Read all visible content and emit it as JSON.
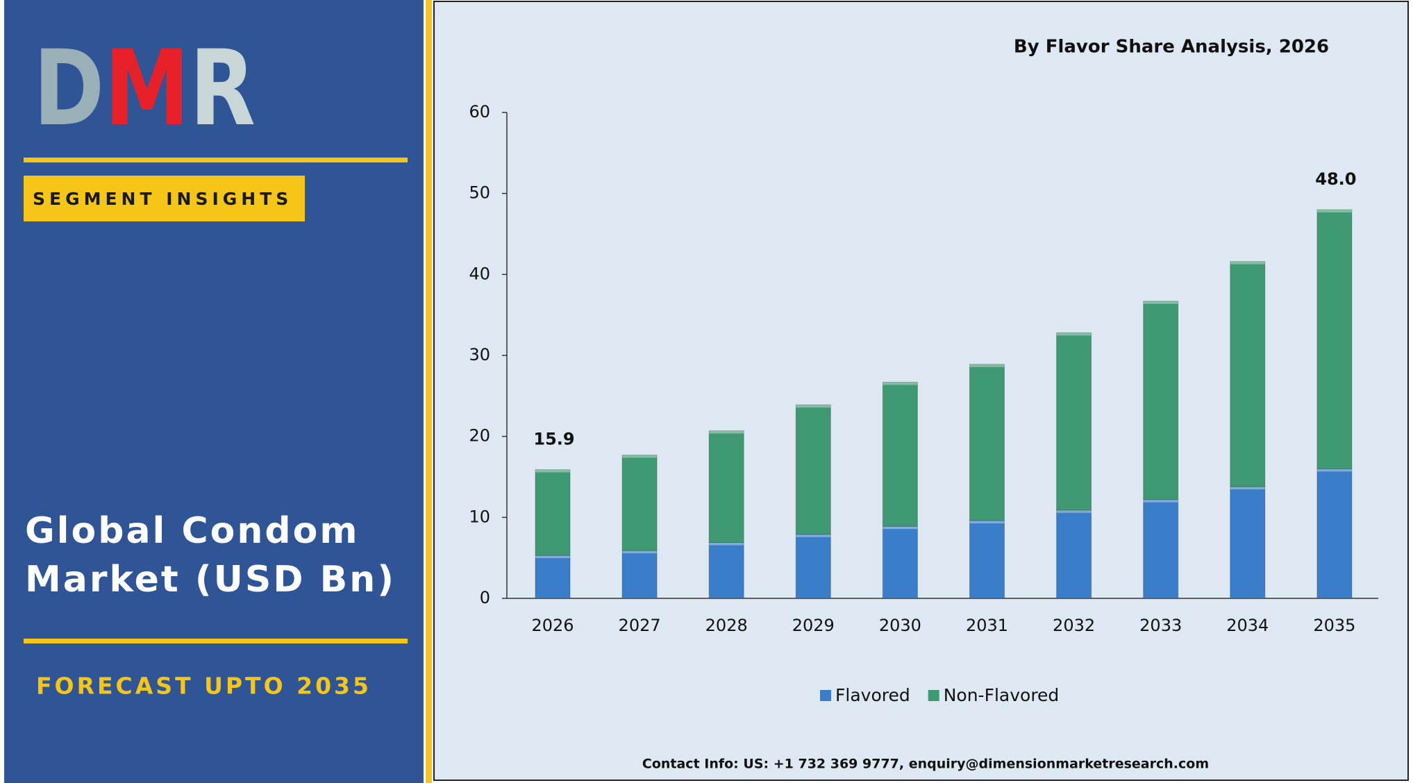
{
  "panel": {
    "logo": "DMR",
    "tag": "SEGMENT INSIGHTS",
    "title_lines": [
      "Global Condom",
      "Market (USD Bn)"
    ],
    "forecast": "FORECAST UPTO 2035"
  },
  "chart_data": {
    "type": "stacked_bar",
    "title": "By Flavor Share Analysis, 2026",
    "categories": [
      "2026",
      "2027",
      "2028",
      "2029",
      "2030",
      "2031",
      "2032",
      "2033",
      "2034",
      "2035"
    ],
    "series": [
      {
        "name": "Flavored",
        "color": "#3a7dc9",
        "values": [
          5.3,
          5.9,
          6.9,
          7.9,
          8.9,
          9.6,
          10.9,
          12.2,
          13.8,
          16.0
        ]
      },
      {
        "name": "Non-Flavored",
        "color": "#3f9a74",
        "values": [
          10.6,
          11.8,
          13.8,
          16.0,
          17.8,
          19.3,
          21.9,
          24.5,
          27.8,
          32.0
        ]
      }
    ],
    "totals": [
      15.9,
      null,
      null,
      null,
      null,
      null,
      null,
      null,
      null,
      48.0
    ],
    "total_labels": [
      "15.9",
      null,
      null,
      null,
      null,
      null,
      null,
      null,
      null,
      "48.0"
    ],
    "ylim": [
      0,
      60
    ],
    "yticks": [
      0,
      10,
      20,
      30,
      40,
      50,
      60
    ],
    "legend": "bottom"
  },
  "footer": {
    "contact": "Contact Info: US: +1 732 369 9777, enquiry@dimensionmarketresearch.com"
  }
}
